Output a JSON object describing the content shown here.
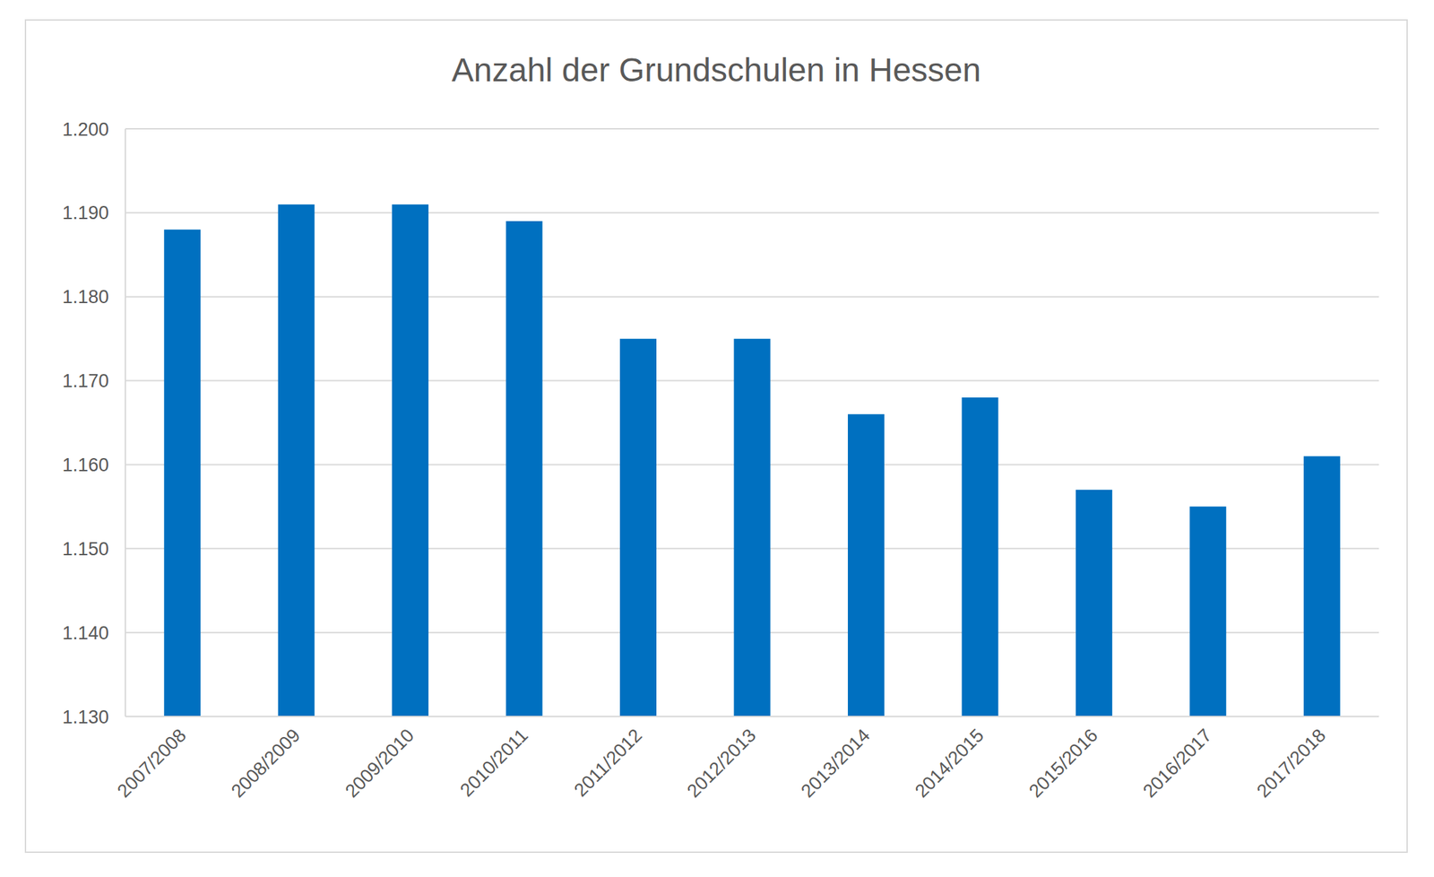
{
  "chart_data": {
    "type": "bar",
    "title": "Anzahl der Grundschulen in Hessen",
    "categories": [
      "2007/2008",
      "2008/2009",
      "2009/2010",
      "2010/2011",
      "2011/2012",
      "2012/2013",
      "2013/2014",
      "2014/2015",
      "2015/2016",
      "2016/2017",
      "2017/2018"
    ],
    "values": [
      1188,
      1191,
      1191,
      1189,
      1175,
      1175,
      1166,
      1168,
      1157,
      1155,
      1161
    ],
    "color": "#0070c0",
    "ylim": [
      1130,
      1200
    ],
    "yticks": [
      {
        "value": 1130,
        "label": "1.130"
      },
      {
        "value": 1140,
        "label": "1.140"
      },
      {
        "value": 1150,
        "label": "1.150"
      },
      {
        "value": 1160,
        "label": "1.160"
      },
      {
        "value": 1170,
        "label": "1.170"
      },
      {
        "value": 1180,
        "label": "1.180"
      },
      {
        "value": 1190,
        "label": "1.190"
      },
      {
        "value": 1200,
        "label": "1.200"
      }
    ],
    "grid": true
  }
}
